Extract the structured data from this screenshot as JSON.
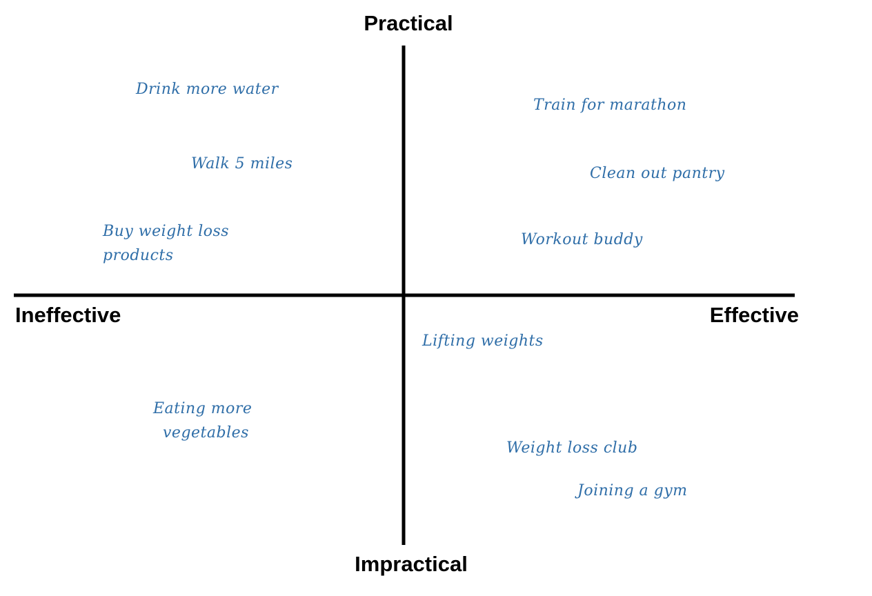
{
  "axes": {
    "top": "Practical",
    "bottom": "Impractical",
    "left": "Ineffective",
    "right": "Effective"
  },
  "items": [
    {
      "lines": [
        "Drink more water"
      ]
    },
    {
      "lines": [
        "Walk 5 miles"
      ]
    },
    {
      "lines": [
        "Buy weight loss",
        "products"
      ]
    },
    {
      "lines": [
        "Train for marathon"
      ]
    },
    {
      "lines": [
        "Clean out pantry"
      ]
    },
    {
      "lines": [
        "Workout buddy"
      ]
    },
    {
      "lines": [
        "Lifting weights"
      ]
    },
    {
      "lines": [
        "Eating more",
        "vegetables"
      ]
    },
    {
      "lines": [
        "Weight loss club"
      ]
    },
    {
      "lines": [
        "Joining a gym"
      ]
    }
  ]
}
